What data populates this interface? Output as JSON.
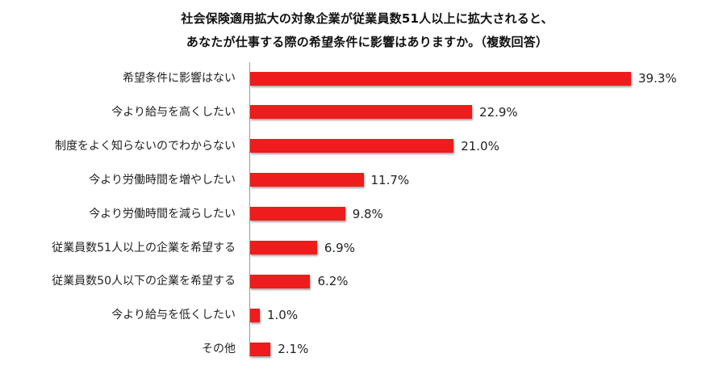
{
  "chart_data": {
    "type": "bar",
    "orientation": "horizontal",
    "title": "社会保険適用拡大の対象企業が従業員数51人以上に拡大されると、",
    "subtitle": "あなたが仕事する際の希望条件に影響はありますか。（複数回答）",
    "xlabel": "",
    "ylabel": "",
    "categories": [
      "希望条件に影響はない",
      "今より給与を高くしたい",
      "制度をよく知らないのでわからない",
      "今より労働時間を増やしたい",
      "今より労働時間を減らしたい",
      "従業員数51人以上の企業を希望する",
      "従業員数50人以下の企業を希望する",
      "今より給与を低くしたい",
      "その他"
    ],
    "values": [
      39.3,
      22.9,
      21.0,
      11.7,
      9.8,
      6.9,
      6.2,
      1.0,
      2.1
    ],
    "value_labels": [
      "39.3%",
      "22.9%",
      "21.0%",
      "11.7%",
      "9.8%",
      "6.9%",
      "6.2%",
      "1.0%",
      "2.1%"
    ],
    "unit": "%",
    "grid": false,
    "legend": null,
    "bar_color": "#ee1c1c"
  }
}
